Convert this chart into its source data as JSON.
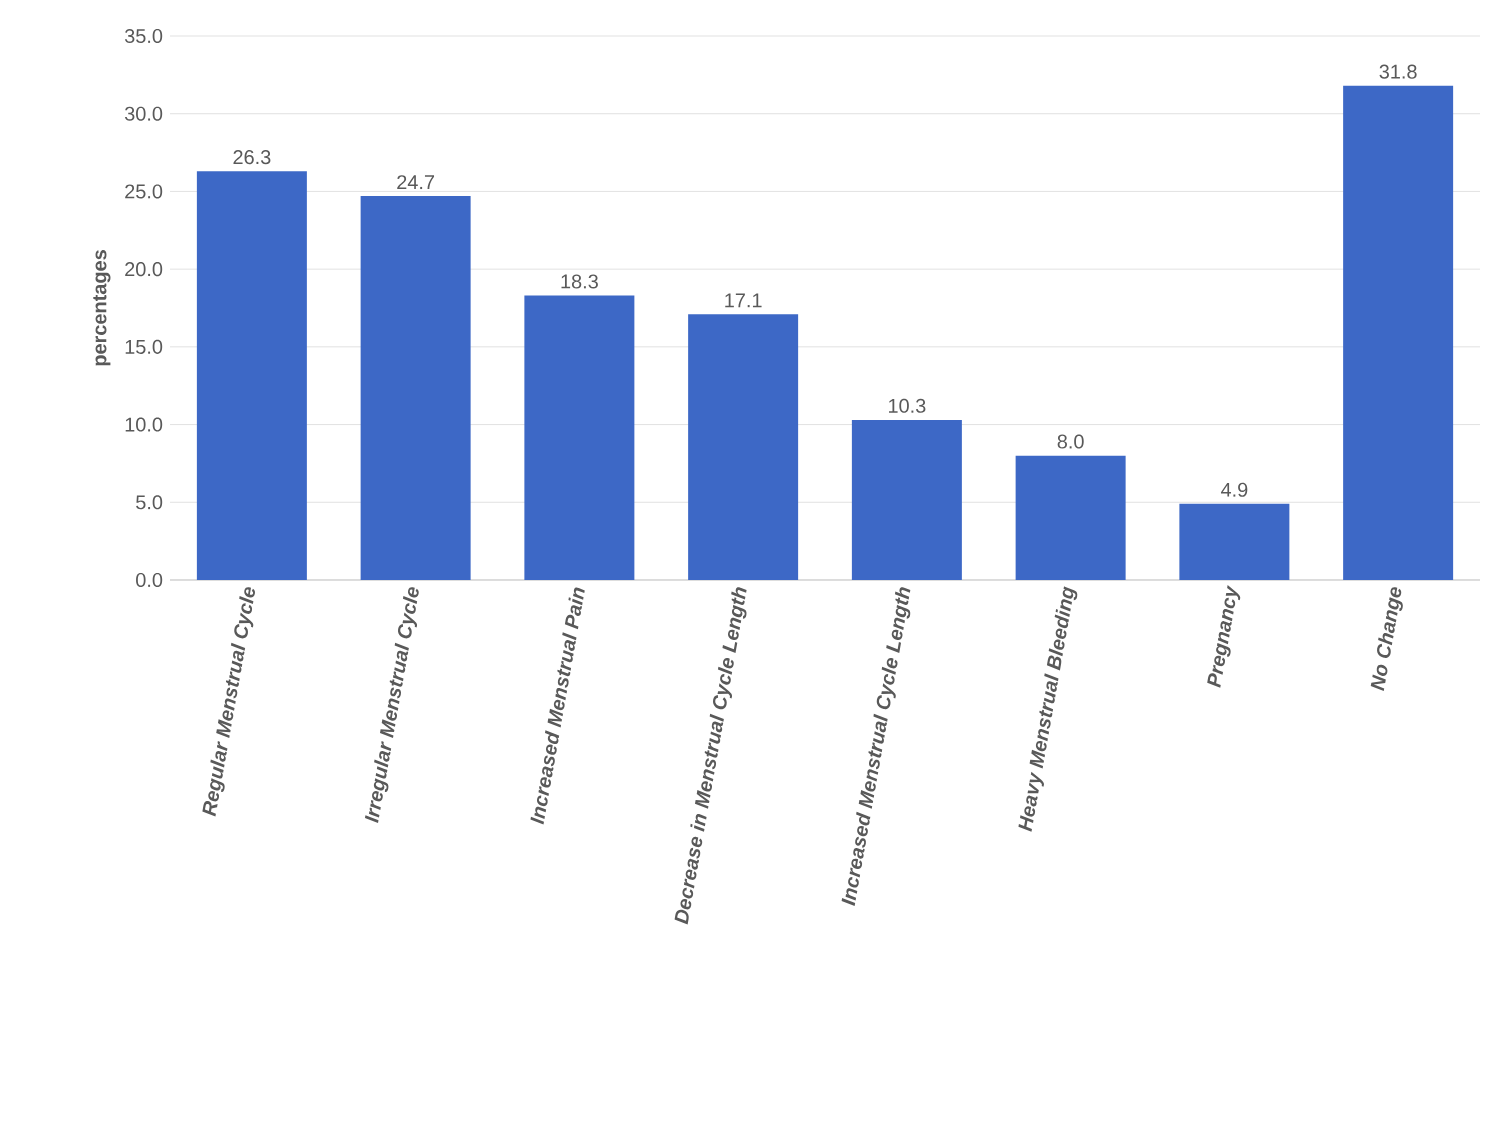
{
  "chart_data": {
    "type": "bar",
    "ylabel": "percentages",
    "categories": [
      "Regular Menstrual Cycle",
      "Irregular Menstrual Cycle",
      "Increased Menstrual Pain",
      "Decrease in Menstrual Cycle Length",
      "Increased Menstrual Cycle Length",
      "Heavy Menstrual Bleeding",
      "Pregnancy",
      "No Change"
    ],
    "values": [
      26.3,
      24.7,
      18.3,
      17.1,
      10.3,
      8.0,
      4.9,
      31.8
    ],
    "value_labels": [
      "26.3",
      "24.7",
      "18.3",
      "17.1",
      "10.3",
      "8.0",
      "4.9",
      "31.8"
    ],
    "color": "#3d68c6",
    "ylim": [
      0,
      35
    ],
    "yticks": [
      {
        "value": 0,
        "label": "0.0"
      },
      {
        "value": 5,
        "label": "5.0"
      },
      {
        "value": 10,
        "label": "10.0"
      },
      {
        "value": 15,
        "label": "15.0"
      },
      {
        "value": 20,
        "label": "20.0"
      },
      {
        "value": 25,
        "label": "25.0"
      },
      {
        "value": 30,
        "label": "30.0"
      },
      {
        "value": 35,
        "label": "35.0"
      }
    ],
    "grid": "y"
  }
}
